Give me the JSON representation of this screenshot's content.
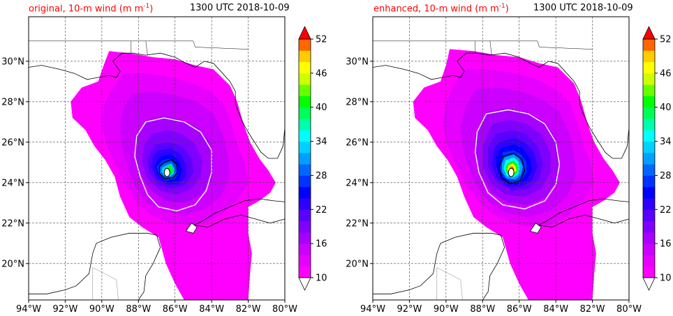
{
  "panels": [
    {
      "title_left": "original, 10-m wind (m m",
      "title_left_sup": "-1",
      "title_left_end": ")",
      "title_right": "1300 UTC 2018-10-09",
      "variant": "original"
    },
    {
      "title_left": "enhanced, 10-m wind (m m",
      "title_left_sup": "-1",
      "title_left_end": ")",
      "title_right": "1300 UTC 2018-10-09",
      "variant": "enhanced"
    }
  ],
  "map": {
    "lon_range": [
      -94,
      -80
    ],
    "lat_range": [
      18.2,
      32.2
    ],
    "lon_ticks": [
      {
        "value": -94,
        "label": "94°W"
      },
      {
        "value": -92,
        "label": "92°W"
      },
      {
        "value": -90,
        "label": "90°W"
      },
      {
        "value": -88,
        "label": "88°W"
      },
      {
        "value": -86,
        "label": "86°W"
      },
      {
        "value": -84,
        "label": "84°W"
      },
      {
        "value": -82,
        "label": "82°W"
      },
      {
        "value": -80,
        "label": "80°W"
      }
    ],
    "lat_ticks": [
      {
        "value": 20,
        "label": "20°N"
      },
      {
        "value": 22,
        "label": "22°N"
      },
      {
        "value": 24,
        "label": "24°N"
      },
      {
        "value": 26,
        "label": "26°N"
      },
      {
        "value": 28,
        "label": "28°N"
      },
      {
        "value": 30,
        "label": "30°N"
      }
    ],
    "storm_center": {
      "lon": -86.4,
      "lat": 24.5
    }
  },
  "colorbar": {
    "levels": [
      10,
      12,
      14,
      16,
      18,
      20,
      22,
      24,
      26,
      28,
      30,
      32,
      34,
      36,
      38,
      40,
      42,
      44,
      46,
      48,
      50,
      52
    ],
    "tick_labels": [
      "10",
      "16",
      "22",
      "28",
      "34",
      "40",
      "46",
      "52"
    ],
    "colors": [
      "#ff00ff",
      "#e600ff",
      "#cc00ff",
      "#a600ff",
      "#7f00ff",
      "#5a00ff",
      "#2d00ff",
      "#0000ff",
      "#0033ff",
      "#0066ff",
      "#00a0ff",
      "#00d0ff",
      "#00ffff",
      "#00ffaa",
      "#00ff55",
      "#00ff00",
      "#66ff00",
      "#ccff00",
      "#ffff00",
      "#ffcc00",
      "#ff6600"
    ],
    "over_color": "#ff0000",
    "under_color": "#ffffff"
  }
}
